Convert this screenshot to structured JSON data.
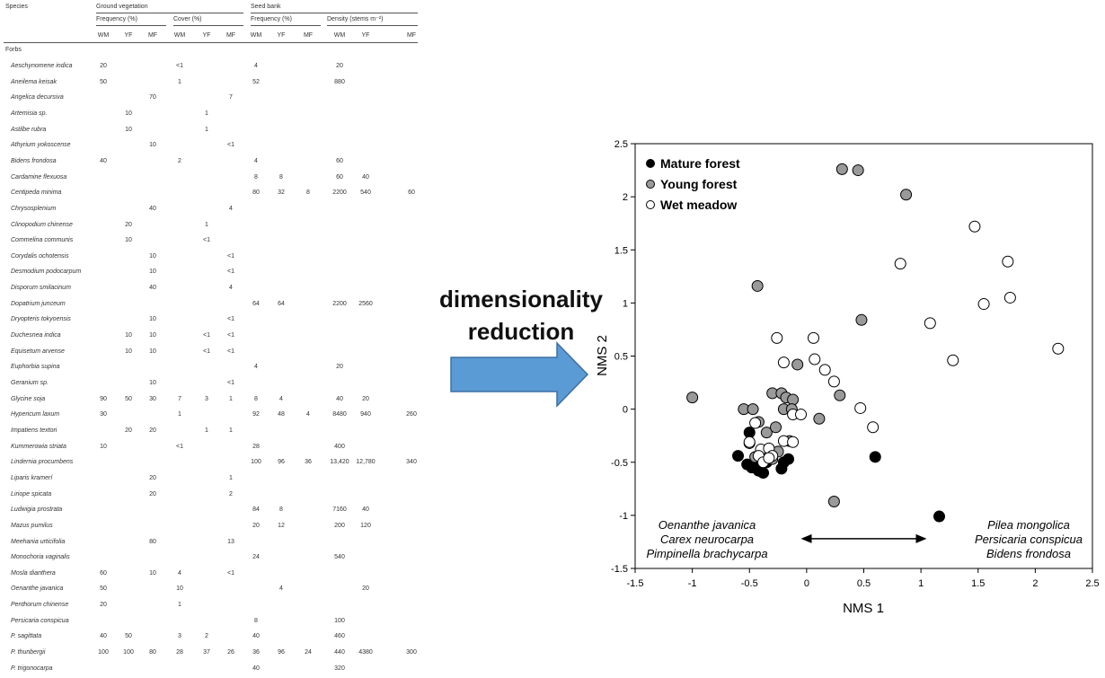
{
  "table": {
    "header": {
      "species": "Species",
      "ground_vegetation": "Ground vegetation",
      "seed_bank": "Seed bank",
      "frequency": "Frequency (%)",
      "cover": "Cover (%)",
      "density": "Density (stems m⁻²)",
      "site_codes": [
        "WM",
        "YF",
        "MF"
      ]
    },
    "group_label": "Forbs",
    "rows": [
      {
        "species": "Aeschynomene indica",
        "cells": [
          "20",
          "",
          "",
          "<1",
          "",
          "",
          "4",
          "",
          "",
          "20",
          "",
          ""
        ]
      },
      {
        "species": "Aneilema keisak",
        "cells": [
          "50",
          "",
          "",
          "1",
          "",
          "",
          "52",
          "",
          "",
          "880",
          "",
          ""
        ]
      },
      {
        "species": "Angelica decursiva",
        "cells": [
          "",
          "",
          "70",
          "",
          "",
          "7",
          "",
          "",
          "",
          "",
          "",
          ""
        ]
      },
      {
        "species": "Artemisia sp.",
        "cells": [
          "",
          "10",
          "",
          "",
          "1",
          "",
          "",
          "",
          "",
          "",
          "",
          ""
        ]
      },
      {
        "species": "Astilbe rubra",
        "cells": [
          "",
          "10",
          "",
          "",
          "1",
          "",
          "",
          "",
          "",
          "",
          "",
          ""
        ]
      },
      {
        "species": "Athyrium yokoscense",
        "cells": [
          "",
          "",
          "10",
          "",
          "",
          "<1",
          "",
          "",
          "",
          "",
          "",
          ""
        ]
      },
      {
        "species": "Bidens frondosa",
        "cells": [
          "40",
          "",
          "",
          "2",
          "",
          "",
          "4",
          "",
          "",
          "60",
          "",
          ""
        ]
      },
      {
        "species": "Cardamine flexuosa",
        "cells": [
          "",
          "",
          "",
          "",
          "",
          "",
          "8",
          "8",
          "",
          "60",
          "40",
          ""
        ]
      },
      {
        "species": "Centipeda minima",
        "cells": [
          "",
          "",
          "",
          "",
          "",
          "",
          "80",
          "32",
          "8",
          "2200",
          "540",
          "60"
        ]
      },
      {
        "species": "Chrysosplenium",
        "cells": [
          "",
          "",
          "40",
          "",
          "",
          "4",
          "",
          "",
          "",
          "",
          "",
          ""
        ]
      },
      {
        "species": "Clinopodium chinense",
        "cells": [
          "",
          "20",
          "",
          "",
          "1",
          "",
          "",
          "",
          "",
          "",
          "",
          ""
        ]
      },
      {
        "species": "Commelina communis",
        "cells": [
          "",
          "10",
          "",
          "",
          "<1",
          "",
          "",
          "",
          "",
          "",
          "",
          ""
        ]
      },
      {
        "species": "Corydalis ochotensis",
        "cells": [
          "",
          "",
          "10",
          "",
          "",
          "<1",
          "",
          "",
          "",
          "",
          "",
          ""
        ]
      },
      {
        "species": "Desmodium podocarpum",
        "cells": [
          "",
          "",
          "10",
          "",
          "",
          "<1",
          "",
          "",
          "",
          "",
          "",
          ""
        ]
      },
      {
        "species": "Disporum smilacinum",
        "cells": [
          "",
          "",
          "40",
          "",
          "",
          "4",
          "",
          "",
          "",
          "",
          "",
          ""
        ]
      },
      {
        "species": "Dopatrium junceum",
        "cells": [
          "",
          "",
          "",
          "",
          "",
          "",
          "64",
          "64",
          "",
          "2200",
          "2560",
          ""
        ]
      },
      {
        "species": "Dryopteris tokyoensis",
        "cells": [
          "",
          "",
          "10",
          "",
          "",
          "<1",
          "",
          "",
          "",
          "",
          "",
          ""
        ]
      },
      {
        "species": "Duchesnea indica",
        "cells": [
          "",
          "10",
          "10",
          "",
          "<1",
          "<1",
          "",
          "",
          "",
          "",
          "",
          ""
        ]
      },
      {
        "species": "Equisetum arvense",
        "cells": [
          "",
          "10",
          "10",
          "",
          "<1",
          "<1",
          "",
          "",
          "",
          "",
          "",
          ""
        ]
      },
      {
        "species": "Euphorbia supina",
        "cells": [
          "",
          "",
          "",
          "",
          "",
          "",
          "4",
          "",
          "",
          "20",
          "",
          ""
        ]
      },
      {
        "species": "Geranium sp.",
        "cells": [
          "",
          "",
          "10",
          "",
          "",
          "<1",
          "",
          "",
          "",
          "",
          "",
          ""
        ]
      },
      {
        "species": "Glycine soja",
        "cells": [
          "90",
          "50",
          "30",
          "7",
          "3",
          "1",
          "8",
          "4",
          "",
          "40",
          "20",
          ""
        ]
      },
      {
        "species": "Hypericum laxum",
        "cells": [
          "30",
          "",
          "",
          "1",
          "",
          "",
          "92",
          "48",
          "4",
          "8480",
          "940",
          "260"
        ]
      },
      {
        "species": "Impatiens textori",
        "cells": [
          "",
          "20",
          "20",
          "",
          "1",
          "1",
          "",
          "",
          "",
          "",
          "",
          ""
        ]
      },
      {
        "species": "Kummerowia striata",
        "cells": [
          "10",
          "",
          "",
          "<1",
          "",
          "",
          "28",
          "",
          "",
          "400",
          "",
          ""
        ]
      },
      {
        "species": "Lindernia procumbens",
        "cells": [
          "",
          "",
          "",
          "",
          "",
          "",
          "100",
          "96",
          "36",
          "13,420",
          "12,780",
          "340"
        ]
      },
      {
        "species": "Liparis kramerí",
        "cells": [
          "",
          "",
          "20",
          "",
          "",
          "1",
          "",
          "",
          "",
          "",
          "",
          ""
        ]
      },
      {
        "species": "Liriope spicata",
        "cells": [
          "",
          "",
          "20",
          "",
          "",
          "2",
          "",
          "",
          "",
          "",
          "",
          ""
        ]
      },
      {
        "species": "Ludwigia prostrata",
        "cells": [
          "",
          "",
          "",
          "",
          "",
          "",
          "84",
          "8",
          "",
          "7160",
          "40",
          ""
        ]
      },
      {
        "species": "Mazus pumilus",
        "cells": [
          "",
          "",
          "",
          "",
          "",
          "",
          "20",
          "12",
          "",
          "200",
          "120",
          ""
        ]
      },
      {
        "species": "Meehania urticifolia",
        "cells": [
          "",
          "",
          "80",
          "",
          "",
          "13",
          "",
          "",
          "",
          "",
          "",
          ""
        ]
      },
      {
        "species": "Monochoria vaginalis",
        "cells": [
          "",
          "",
          "",
          "",
          "",
          "",
          "24",
          "",
          "",
          "540",
          "",
          ""
        ]
      },
      {
        "species": "Mosla dianthera",
        "cells": [
          "60",
          "",
          "10",
          "4",
          "",
          "<1",
          "",
          "",
          "",
          "",
          "",
          ""
        ]
      },
      {
        "species": "Oenanthe javanica",
        "cells": [
          "50",
          "",
          "",
          "10",
          "",
          "",
          "",
          "4",
          "",
          "",
          "20",
          ""
        ]
      },
      {
        "species": "Penthorum chinense",
        "cells": [
          "20",
          "",
          "",
          "1",
          "",
          "",
          "",
          "",
          "",
          "",
          "",
          ""
        ]
      },
      {
        "species": "Persicaria conspicua",
        "cells": [
          "",
          "",
          "",
          "",
          "",
          "",
          "8",
          "",
          "",
          "100",
          "",
          ""
        ]
      },
      {
        "species": "P. sagittata",
        "cells": [
          "40",
          "50",
          "",
          "3",
          "2",
          "",
          "40",
          "",
          "",
          "460",
          "",
          ""
        ]
      },
      {
        "species": "P. thunbergii",
        "cells": [
          "100",
          "100",
          "80",
          "28",
          "37",
          "26",
          "36",
          "96",
          "24",
          "440",
          "4380",
          "300"
        ]
      },
      {
        "species": "P. trigonocarpa",
        "cells": [
          "",
          "",
          "",
          "",
          "",
          "",
          "40",
          "",
          "",
          "320",
          "",
          ""
        ]
      }
    ]
  },
  "arrow": {
    "caption_line1": "dimensionality",
    "caption_line2": "reduction",
    "color": "#5b9bd5"
  },
  "chart_data": {
    "type": "scatter",
    "xlabel": "NMS 1",
    "ylabel": "NMS 2",
    "xlim": [
      -1.5,
      2.5
    ],
    "ylim": [
      -1.5,
      2.5
    ],
    "xticks": [
      -1.5,
      -1,
      -0.5,
      0,
      0.5,
      1,
      1.5,
      2,
      2.5
    ],
    "yticks": [
      -1.5,
      -1,
      -0.5,
      0,
      0.5,
      1,
      1.5,
      2,
      2.5
    ],
    "legend_position": "top-left",
    "series": [
      {
        "name": "Mature forest",
        "fill": "#000000",
        "points": [
          [
            -0.6,
            -0.44
          ],
          [
            -0.5,
            -0.22
          ],
          [
            -0.52,
            -0.52
          ],
          [
            -0.48,
            -0.55
          ],
          [
            -0.44,
            -0.5
          ],
          [
            -0.42,
            -0.58
          ],
          [
            -0.38,
            -0.6
          ],
          [
            -0.35,
            -0.5
          ],
          [
            -0.22,
            -0.56
          ],
          [
            -0.2,
            -0.5
          ],
          [
            -0.16,
            -0.47
          ],
          [
            0.6,
            -0.45
          ],
          [
            1.16,
            -1.01
          ]
        ]
      },
      {
        "name": "Young forest",
        "fill": "#9a9a9a",
        "points": [
          [
            0.31,
            2.26
          ],
          [
            0.45,
            2.25
          ],
          [
            0.87,
            2.02
          ],
          [
            -0.43,
            1.16
          ],
          [
            0.48,
            0.84
          ],
          [
            -1.0,
            0.11
          ],
          [
            -0.55,
            0.0
          ],
          [
            -0.47,
            0.0
          ],
          [
            -0.3,
            0.15
          ],
          [
            -0.22,
            0.15
          ],
          [
            -0.18,
            0.11
          ],
          [
            0.29,
            0.13
          ],
          [
            -0.08,
            0.42
          ],
          [
            -0.12,
            0.09
          ],
          [
            -0.2,
            0.0
          ],
          [
            -0.13,
            0.0
          ],
          [
            -0.42,
            -0.12
          ],
          [
            -0.35,
            -0.22
          ],
          [
            -0.27,
            -0.17
          ],
          [
            -0.5,
            -0.32
          ],
          [
            -0.45,
            -0.45
          ],
          [
            -0.3,
            -0.47
          ],
          [
            0.11,
            -0.09
          ],
          [
            0.24,
            -0.87
          ],
          [
            -0.15,
            -0.3
          ],
          [
            -0.25,
            -0.4
          ]
        ]
      },
      {
        "name": "Wet meadow",
        "fill": "#ffffff",
        "points": [
          [
            1.47,
            1.72
          ],
          [
            0.82,
            1.37
          ],
          [
            1.76,
            1.39
          ],
          [
            1.55,
            0.99
          ],
          [
            1.78,
            1.05
          ],
          [
            1.08,
            0.81
          ],
          [
            -0.26,
            0.67
          ],
          [
            0.06,
            0.67
          ],
          [
            -0.2,
            0.44
          ],
          [
            0.07,
            0.47
          ],
          [
            0.16,
            0.37
          ],
          [
            0.24,
            0.26
          ],
          [
            1.28,
            0.46
          ],
          [
            2.2,
            0.57
          ],
          [
            0.47,
            0.01
          ],
          [
            0.58,
            -0.17
          ],
          [
            -0.12,
            -0.05
          ],
          [
            -0.05,
            -0.05
          ],
          [
            -0.45,
            -0.13
          ],
          [
            -0.2,
            -0.3
          ],
          [
            -0.12,
            -0.31
          ],
          [
            -0.5,
            -0.31
          ],
          [
            -0.4,
            -0.38
          ],
          [
            -0.33,
            -0.37
          ],
          [
            -0.3,
            -0.44
          ],
          [
            -0.42,
            -0.44
          ],
          [
            -0.38,
            -0.5
          ],
          [
            -0.33,
            -0.46
          ]
        ]
      }
    ],
    "annotations": {
      "left_species": [
        "Oenanthe javanica",
        "Carex neurocarpa",
        "Pimpinella brachycarpa"
      ],
      "right_species": [
        "Pilea mongolica",
        "Persicaria conspicua",
        "Bidens frondosa"
      ],
      "double_arrow_x": [
        -0.05,
        1.05
      ],
      "double_arrow_y": -1.22
    }
  }
}
